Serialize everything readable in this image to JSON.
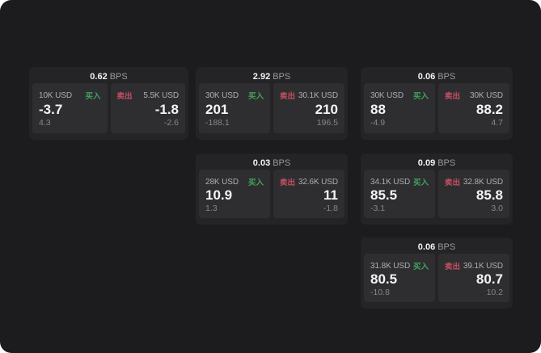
{
  "labels": {
    "bps_unit": "BPS",
    "buy": "买入",
    "sell": "卖出"
  },
  "colors": {
    "buy": "#42a15a",
    "sell": "#c74d62"
  },
  "cards": [
    {
      "bps": "0.62",
      "buy": {
        "amount": "10K USD",
        "value": "-3.7",
        "sub": "4.3"
      },
      "sell": {
        "amount": "5.5K USD",
        "value": "-1.8",
        "sub": "-2.6"
      }
    },
    {
      "bps": "2.92",
      "buy": {
        "amount": "30K USD",
        "value": "201",
        "sub": "-188.1"
      },
      "sell": {
        "amount": "30.1K USD",
        "value": "210",
        "sub": "196.5"
      }
    },
    {
      "bps": "0.06",
      "buy": {
        "amount": "30K USD",
        "value": "88",
        "sub": "-4.9"
      },
      "sell": {
        "amount": "30K USD",
        "value": "88.2",
        "sub": "4.7"
      }
    },
    {
      "bps": "0.03",
      "buy": {
        "amount": "28K USD",
        "value": "10.9",
        "sub": "1.3"
      },
      "sell": {
        "amount": "32.6K USD",
        "value": "11",
        "sub": "-1.8"
      }
    },
    {
      "bps": "0.09",
      "buy": {
        "amount": "34.1K USD",
        "value": "85.5",
        "sub": "-3.1"
      },
      "sell": {
        "amount": "32.8K USD",
        "value": "85.8",
        "sub": "3.0"
      }
    },
    {
      "bps": "0.06",
      "buy": {
        "amount": "31.8K USD",
        "value": "80.5",
        "sub": "-10.8"
      },
      "sell": {
        "amount": "39.1K USD",
        "value": "80.7",
        "sub": "10.2"
      }
    }
  ]
}
